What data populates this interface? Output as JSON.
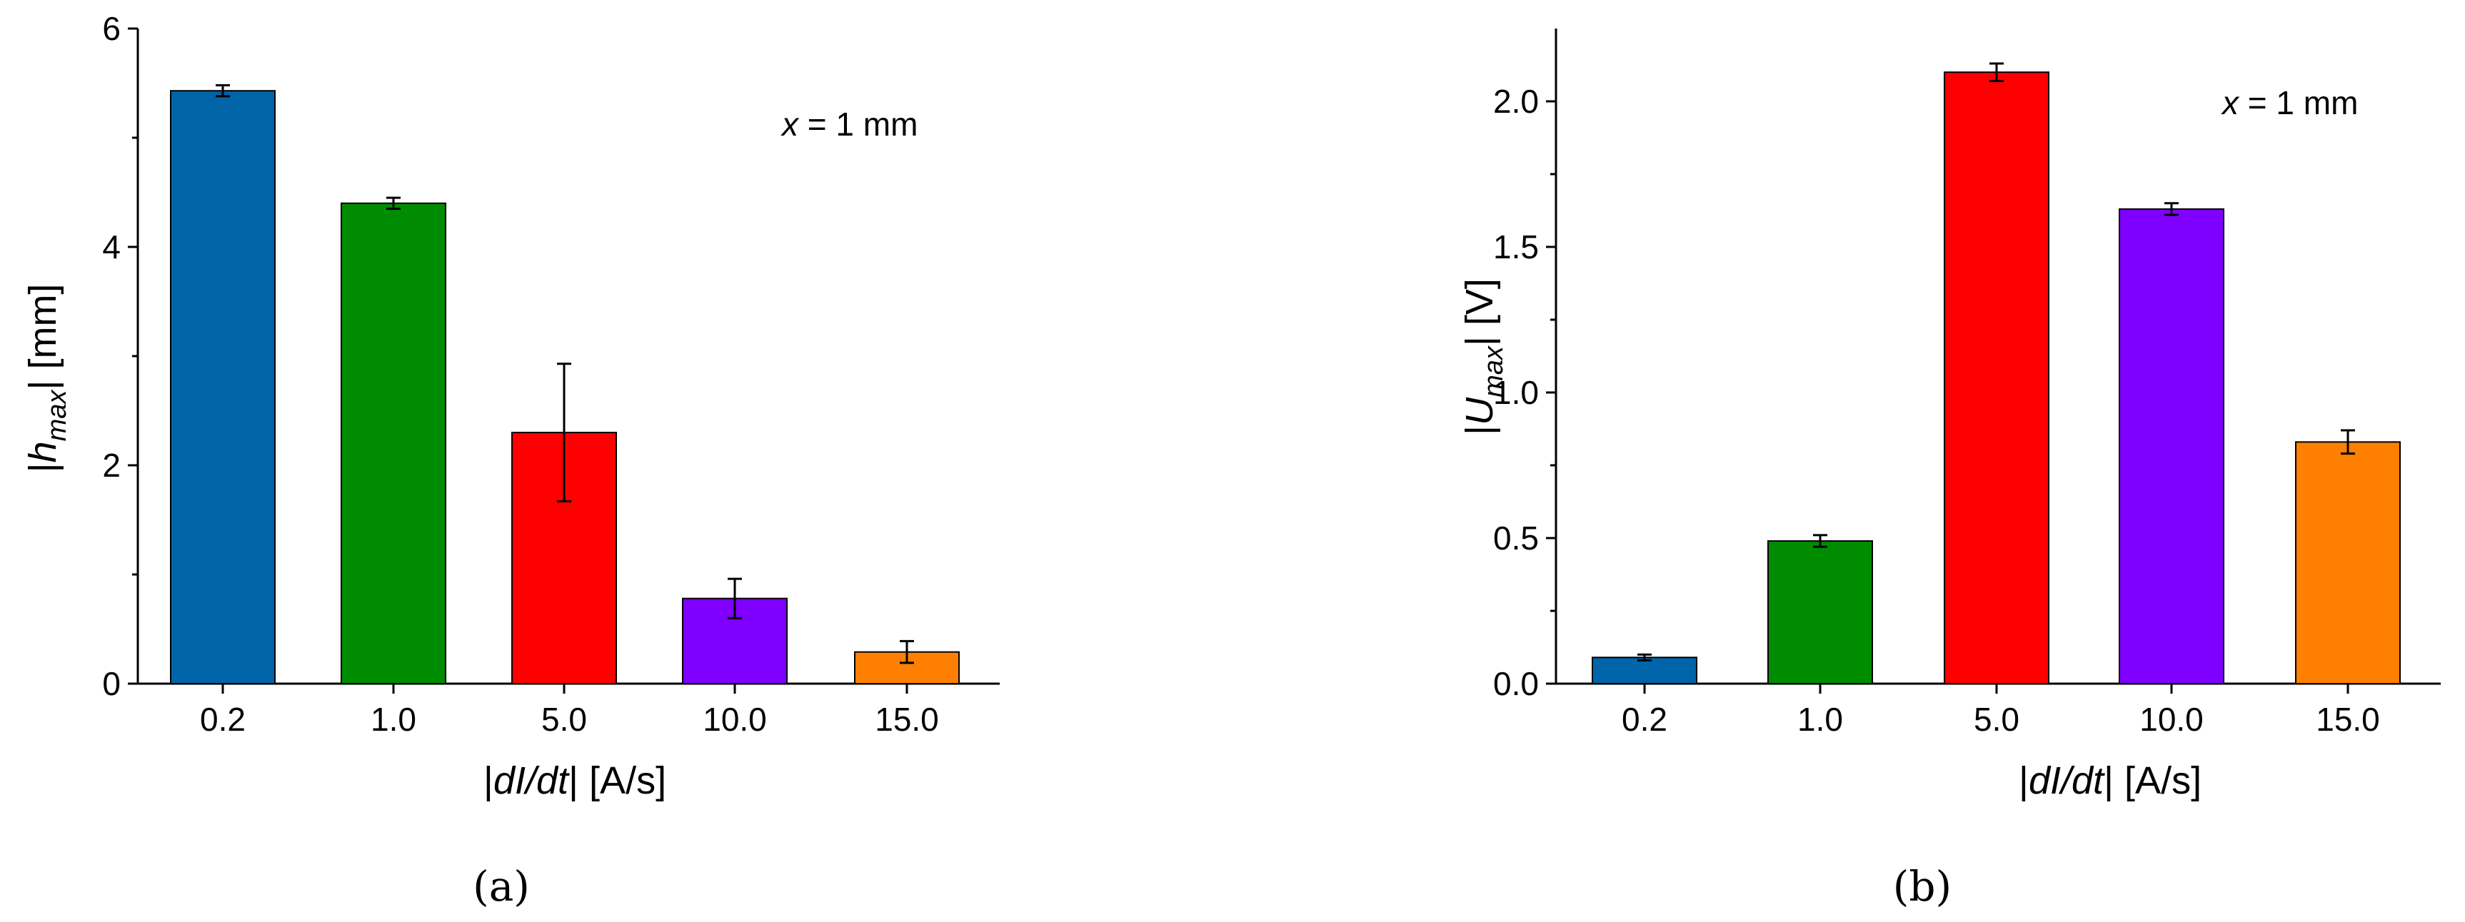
{
  "panels": [
    {
      "label": "(a)",
      "annotation": "x = 1 mm",
      "ylabel": "|h_max| [mm]",
      "xlabel": "|dI/dt| [A/s]"
    },
    {
      "label": "(b)",
      "annotation": "x = 1 mm",
      "ylabel": "|U_max| [V]",
      "xlabel": "|dI/dt| [A/s]"
    }
  ],
  "chart_data": [
    {
      "type": "bar",
      "categories": [
        "0.2",
        "1.0",
        "5.0",
        "10.0",
        "15.0"
      ],
      "values": [
        5.43,
        4.4,
        2.3,
        0.78,
        0.29
      ],
      "errors": [
        0.05,
        0.05,
        0.63,
        0.18,
        0.1
      ],
      "colors": [
        "#0064a8",
        "#008c00",
        "#ff0000",
        "#8000ff",
        "#ff8000"
      ],
      "ylim": [
        0,
        6
      ],
      "yticks": [
        0,
        2,
        4,
        6
      ],
      "ytick_labels": [
        "0",
        "2",
        "4",
        "6"
      ],
      "xlabel": "|dI/dt| [A/s]",
      "ylabel": "|h_max| [mm]",
      "annotation": "x = 1 mm",
      "grid": false
    },
    {
      "type": "bar",
      "categories": [
        "0.2",
        "1.0",
        "5.0",
        "10.0",
        "15.0"
      ],
      "values": [
        0.09,
        0.49,
        2.1,
        1.63,
        0.83
      ],
      "errors": [
        0.01,
        0.02,
        0.03,
        0.02,
        0.04
      ],
      "colors": [
        "#0064a8",
        "#008c00",
        "#ff0000",
        "#8000ff",
        "#ff8000"
      ],
      "ylim": [
        0,
        2.25
      ],
      "yticks": [
        0.0,
        0.5,
        1.0,
        1.5,
        2.0
      ],
      "ytick_labels": [
        "0.0",
        "0.5",
        "1.0",
        "1.5",
        "2.0"
      ],
      "xlabel": "|dI/dt| [A/s]",
      "ylabel": "|U_max| [V]",
      "annotation": "x = 1 mm",
      "grid": false
    }
  ]
}
